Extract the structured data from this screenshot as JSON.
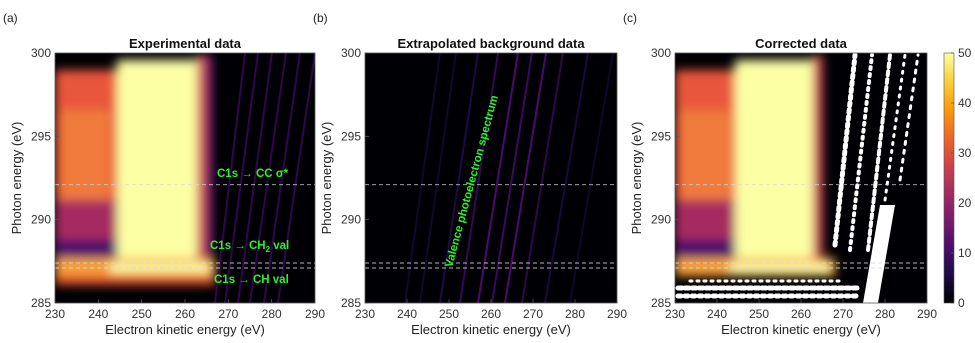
{
  "colors": {
    "cmap": [
      "#000004",
      "#1b0c41",
      "#4a0c6b",
      "#781c6d",
      "#a52c60",
      "#cf4446",
      "#ed6925",
      "#fb9b06",
      "#f7d13d",
      "#fcffa4"
    ],
    "annotation": "#2bf02b",
    "dashed_line": "#d9d9d9"
  },
  "chart_data": [
    {
      "type": "heatmap",
      "panel_label": "(a)",
      "title": "Experimental data",
      "xlabel": "Electron kinetic energy (eV)",
      "ylabel": "Photon energy (eV)",
      "xlim": [
        230,
        290
      ],
      "ylim": [
        285,
        300
      ],
      "xticks": [
        "230",
        "240",
        "250",
        "260",
        "270",
        "280",
        "290"
      ],
      "yticks": [
        "285",
        "290",
        "295",
        "300"
      ],
      "annotations": [
        {
          "text": "C1s → CC σ*",
          "photon_energy": 292.1
        },
        {
          "text": "C1s → CH",
          "subscript": "2",
          "suffix": " val",
          "photon_energy": 287.8
        },
        {
          "text": "C1s → CH val",
          "photon_energy": 287.1
        }
      ],
      "dashed_lines_photon_energy": [
        292.1,
        287.4,
        287.1
      ]
    },
    {
      "type": "heatmap",
      "panel_label": "(b)",
      "title": "Extrapolated background data",
      "xlabel": "Electron kinetic energy (eV)",
      "ylabel": "Photon energy (eV)",
      "xlim": [
        230,
        290
      ],
      "ylim": [
        285,
        300
      ],
      "xticks": [
        "230",
        "240",
        "250",
        "260",
        "270",
        "280",
        "290"
      ],
      "yticks": [
        "285",
        "290",
        "295",
        "300"
      ],
      "annotations": [
        {
          "text": "Valence photoelectron spectrum",
          "angle": -72
        }
      ],
      "dashed_lines_photon_energy": [
        292.1,
        287.4,
        287.1
      ]
    },
    {
      "type": "heatmap",
      "panel_label": "(c)",
      "title": "Corrected data",
      "xlabel": "Electron kinetic energy (eV)",
      "ylabel": "Photon energy (eV)",
      "xlim": [
        230,
        290
      ],
      "ylim": [
        285,
        300
      ],
      "xticks": [
        "230",
        "240",
        "250",
        "260",
        "270",
        "280",
        "290"
      ],
      "yticks": [
        "285",
        "290",
        "295",
        "300"
      ],
      "dashed_lines_photon_energy": [
        292.1,
        287.4,
        287.1
      ],
      "colorbar": {
        "range": [
          0,
          50
        ],
        "ticks": [
          "0",
          "10",
          "20",
          "30",
          "40",
          "50"
        ]
      }
    }
  ]
}
